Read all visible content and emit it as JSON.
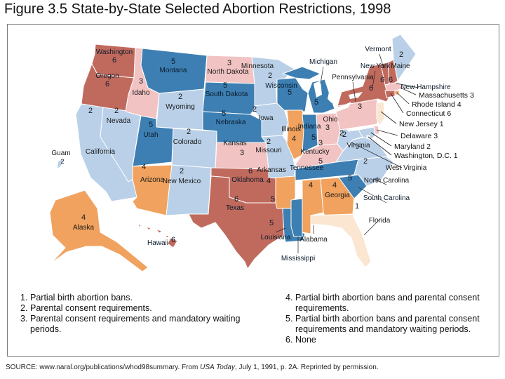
{
  "title": "Figure 3.5  State-by-State Selected Abortion Restrictions, 1998",
  "colors": {
    "cat1": "#fbe6d2",
    "cat2": "#b9d0e8",
    "cat3": "#f2c3c3",
    "cat4": "#f0a25e",
    "cat5": "#3d7fb2",
    "cat6": "#c06a5e",
    "border": "#ffffff",
    "water": "#ffffff"
  },
  "states": [
    {
      "id": "WA",
      "name": "Washington",
      "code": "6",
      "cat": 6
    },
    {
      "id": "OR",
      "name": "Oregon",
      "code": "6",
      "cat": 6
    },
    {
      "id": "CA",
      "name": "California",
      "code": "2",
      "cat": 2
    },
    {
      "id": "NV",
      "name": "Nevada",
      "code": "2",
      "cat": 2
    },
    {
      "id": "ID",
      "name": "Idaho",
      "code": "3",
      "cat": 3
    },
    {
      "id": "MT",
      "name": "Montana",
      "code": "5",
      "cat": 5
    },
    {
      "id": "WY",
      "name": "Wyoming",
      "code": "2",
      "cat": 2
    },
    {
      "id": "UT",
      "name": "Utah",
      "code": "5",
      "cat": 5
    },
    {
      "id": "CO",
      "name": "Colorado",
      "code": "2",
      "cat": 2
    },
    {
      "id": "AZ",
      "name": "Arizona",
      "code": "4",
      "cat": 4
    },
    {
      "id": "NM",
      "name": "New Mexico",
      "code": "2",
      "cat": 2
    },
    {
      "id": "ND",
      "name": "North Dakota",
      "code": "3",
      "cat": 3
    },
    {
      "id": "SD",
      "name": "South Dakota",
      "code": "5",
      "cat": 5
    },
    {
      "id": "NE",
      "name": "Nebraska",
      "code": "5",
      "cat": 5
    },
    {
      "id": "KS",
      "name": "Kansas",
      "code": "3",
      "cat": 3
    },
    {
      "id": "OK",
      "name": "Oklahoma",
      "code": "6",
      "cat": 6
    },
    {
      "id": "TX",
      "name": "Texas",
      "code": "6",
      "cat": 6
    },
    {
      "id": "MN",
      "name": "Minnesota",
      "code": "2",
      "cat": 2
    },
    {
      "id": "IA",
      "name": "Iowa",
      "code": "2",
      "cat": 2
    },
    {
      "id": "MO",
      "name": "Missouri",
      "code": "2",
      "cat": 2
    },
    {
      "id": "AR",
      "name": "Arkansas",
      "code": "4",
      "cat": 4
    },
    {
      "id": "LA",
      "name": "Louisiana",
      "code": "5",
      "cat": 5
    },
    {
      "id": "WI",
      "name": "Wisconsin",
      "code": "5",
      "cat": 5
    },
    {
      "id": "IL",
      "name": "Illinois",
      "code": "4",
      "cat": 4
    },
    {
      "id": "MI",
      "name": "Michigan",
      "code": "5",
      "cat": 5
    },
    {
      "id": "IN",
      "name": "Indiana",
      "code": "5",
      "cat": 5
    },
    {
      "id": "OH",
      "name": "Ohio",
      "code": "3",
      "cat": 3
    },
    {
      "id": "KY",
      "name": "Kentucky",
      "code": "3",
      "cat": 3
    },
    {
      "id": "TN",
      "name": "Tennessee",
      "code": "5",
      "cat": 5
    },
    {
      "id": "MS",
      "name": "Mississippi",
      "code": "5",
      "cat": 5
    },
    {
      "id": "AL",
      "name": "Alabama",
      "code": "4",
      "cat": 4
    },
    {
      "id": "GA",
      "name": "Georgia",
      "code": "4",
      "cat": 4
    },
    {
      "id": "FL",
      "name": "Florida",
      "code": "1",
      "cat": 1
    },
    {
      "id": "SC",
      "name": "South Carolina",
      "code": "5",
      "cat": 5
    },
    {
      "id": "NC",
      "name": "North Carolina",
      "code": "2",
      "cat": 2
    },
    {
      "id": "VA",
      "name": "Virginia",
      "code": "2",
      "cat": 2
    },
    {
      "id": "WV",
      "name": "West Virginia",
      "code": "2",
      "cat": 2
    },
    {
      "id": "PA",
      "name": "Pennsylvania",
      "code": "3",
      "cat": 3
    },
    {
      "id": "NY",
      "name": "New York",
      "code": "6",
      "cat": 6
    },
    {
      "id": "VT",
      "name": "Vermont",
      "code": "6",
      "cat": 6
    },
    {
      "id": "NH",
      "name": "New Hampshire",
      "code": "6",
      "cat": 6
    },
    {
      "id": "ME",
      "name": "Maine",
      "code": "2",
      "cat": 2
    },
    {
      "id": "MA",
      "name": "Massachusetts",
      "code": "3",
      "cat": 3
    },
    {
      "id": "RI",
      "name": "Rhode Island",
      "code": "4",
      "cat": 4
    },
    {
      "id": "CT",
      "name": "Connecticut",
      "code": "6",
      "cat": 6
    },
    {
      "id": "NJ",
      "name": "New Jersey",
      "code": "1",
      "cat": 1
    },
    {
      "id": "DE",
      "name": "Delaware",
      "code": "3",
      "cat": 3
    },
    {
      "id": "MD",
      "name": "Maryland",
      "code": "2",
      "cat": 2
    },
    {
      "id": "DC",
      "name": "Washington, D.C.",
      "code": "1",
      "cat": 1
    },
    {
      "id": "AK",
      "name": "Alaska",
      "code": "4",
      "cat": 4
    },
    {
      "id": "HI",
      "name": "Hawaii",
      "code": "6",
      "cat": 6
    },
    {
      "id": "GU",
      "name": "Guam",
      "code": "2",
      "cat": 2
    }
  ],
  "callouts": {
    "MA": "Massachusetts  3",
    "RI": "Rhode Island  4",
    "CT": "Connecticut  6",
    "NJ": "New Jersey  1",
    "DE": "Delaware  3",
    "MD": "Maryland  2",
    "DC": "Washington, D.C.  1"
  },
  "legend": [
    {
      "num": "1.",
      "text": "Partial birth abortion bans."
    },
    {
      "num": "2.",
      "text": "Parental consent requirements."
    },
    {
      "num": "3.",
      "text": "Parental consent requirements and mandatory waiting periods."
    },
    {
      "num": "4.",
      "text": "Partial birth abortion bans and parental consent requirements."
    },
    {
      "num": "5.",
      "text": "Partial birth abortion bans and parental consent requirements and mandatory waiting periods."
    },
    {
      "num": "6.",
      "text": "None"
    }
  ],
  "source": {
    "prefix": "SOURCE: www.naral.org/publications/whod98summary. From ",
    "italic": "USA Today",
    "suffix": ", July 1, 1991, p. 2A. Reprinted by permission."
  }
}
